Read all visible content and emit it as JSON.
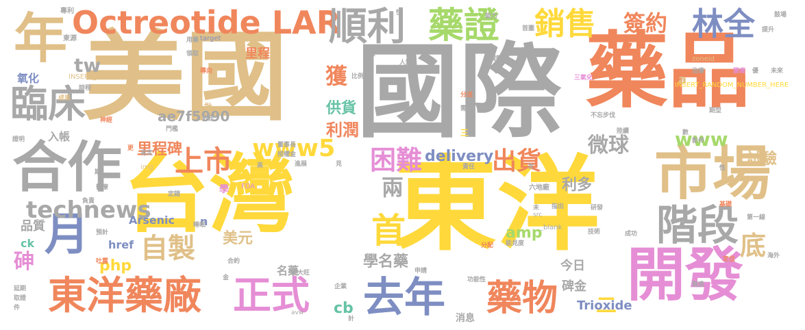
{
  "colors": {
    "background": "#ffffff",
    "palette": [
      "#a8a8a8",
      "#f0865c",
      "#e0c088",
      "#ffd93b",
      "#7e8ec2",
      "#e58ed5",
      "#a6d96a",
      "#66c2a5",
      "#d9b278"
    ]
  },
  "words": [
    {
      "text": "美國",
      "color": "#e0c088"
    },
    {
      "text": "國際",
      "color": "#a8a8a8"
    },
    {
      "text": "藥品",
      "color": "#f0865c"
    },
    {
      "text": "台灣",
      "color": "#ffd93b"
    },
    {
      "text": "東洋",
      "color": "#ffd93b"
    },
    {
      "text": "市場",
      "color": "#e0c088"
    },
    {
      "text": "開發",
      "color": "#e58ed5"
    },
    {
      "text": "合作",
      "color": "#a8a8a8"
    },
    {
      "text": "Octreotide LAR",
      "color": "#f0865c"
    },
    {
      "text": "順利",
      "color": "#a8a8a8"
    },
    {
      "text": "藥證",
      "color": "#a6d96a"
    },
    {
      "text": "銷售",
      "color": "#ffd93b"
    },
    {
      "text": "簽約",
      "color": "#f0865c"
    },
    {
      "text": "林全",
      "color": "#7e8ec2"
    },
    {
      "text": "年",
      "color": "#e0c088"
    },
    {
      "text": "臨床",
      "color": "#a8a8a8"
    },
    {
      "text": "月",
      "color": "#7e8ec2"
    },
    {
      "text": "階段",
      "color": "#a8a8a8"
    },
    {
      "text": "東洋藥廠",
      "color": "#f0865c"
    },
    {
      "text": "正式",
      "color": "#e58ed5"
    },
    {
      "text": "去年",
      "color": "#7e8ec2"
    },
    {
      "text": "藥物",
      "color": "#f0865c"
    },
    {
      "text": "上市",
      "color": "#f0865c"
    },
    {
      "text": "www5",
      "color": "#ffd93b"
    },
    {
      "text": "困難",
      "color": "#e58ed5"
    },
    {
      "text": "出貨",
      "color": "#f0865c"
    },
    {
      "text": "微球",
      "color": "#a8a8a8"
    },
    {
      "text": "www",
      "color": "#a6d96a"
    },
    {
      "text": "首",
      "color": "#ffd93b"
    },
    {
      "text": "自製",
      "color": "#e0c088"
    },
    {
      "text": "technews",
      "color": "#a8a8a8"
    },
    {
      "text": "底",
      "color": "#e0c088"
    },
    {
      "text": "獲",
      "color": "#f0865c"
    },
    {
      "text": "供貨",
      "color": "#66c2a5"
    },
    {
      "text": "利潤",
      "color": "#f0865c"
    },
    {
      "text": "兩",
      "color": "#a8a8a8"
    },
    {
      "text": "里程碑",
      "color": "#f0865c"
    },
    {
      "text": "ae7f5990",
      "color": "#a8a8a8"
    },
    {
      "text": "tw",
      "color": "#a8a8a8"
    },
    {
      "text": "delivery",
      "color": "#7e8ec2"
    },
    {
      "text": "試驗",
      "color": "#e0c088"
    },
    {
      "text": "利多",
      "color": "#a8a8a8"
    },
    {
      "text": "砷",
      "color": "#e58ed5"
    },
    {
      "text": "美元",
      "color": "#e0c088"
    },
    {
      "text": "學名藥",
      "color": "#a8a8a8"
    },
    {
      "text": "amp",
      "color": "#a6d96a"
    },
    {
      "text": "php",
      "color": "#ffd93b"
    },
    {
      "text": "cb",
      "color": "#66c2a5"
    },
    {
      "text": "名藥",
      "color": "#a8a8a8"
    },
    {
      "text": "Trioxide",
      "color": "#7e8ec2"
    },
    {
      "text": "碑金",
      "color": "#a8a8a8"
    },
    {
      "text": "今日",
      "color": "#a8a8a8"
    },
    {
      "text": "二",
      "color": "#ffd93b"
    },
    {
      "text": "Arsenic",
      "color": "#7e8ec2"
    },
    {
      "text": "品質",
      "color": "#a8a8a8"
    },
    {
      "text": "入帳",
      "color": "#a8a8a8"
    },
    {
      "text": "氧化",
      "color": "#7e8ec2"
    },
    {
      "text": "里程",
      "color": "#f0865c"
    },
    {
      "text": "href",
      "color": "#7e8ec2"
    },
    {
      "text": "ck",
      "color": "#66c2a5"
    },
    {
      "text": "n",
      "color": "#7e8ec2"
    },
    {
      "text": "a",
      "color": "#e0c088"
    },
    {
      "text": "消息",
      "color": "#a8a8a8"
    },
    {
      "text": "專利",
      "color": "#a8a8a8"
    },
    {
      "text": "東源",
      "color": "#a8a8a8"
    },
    {
      "text": "INSERT_RANDOM_N",
      "color": "#e0c088"
    },
    {
      "text": "INSERT_RANDOM_NUMBER_HERE",
      "color": "#ffd93b"
    },
    {
      "text": "target",
      "color": "#7e8ec2"
    },
    {
      "text": "zoneid",
      "color": "#e0c088"
    },
    {
      "text": "三",
      "color": "#ffd93b"
    },
    {
      "text": "三氧化",
      "color": "#e58ed5"
    },
    {
      "text": "六地廠",
      "color": "#a8a8a8"
    },
    {
      "text": "FDA",
      "color": "#e58ed5"
    },
    {
      "text": "學",
      "color": "#e58ed5"
    },
    {
      "text": "_blank",
      "color": "#a8a8a8"
    },
    {
      "text": "src",
      "color": "#a8a8a8"
    },
    {
      "text": "img",
      "color": "#e0c088"
    },
    {
      "text": "avw",
      "color": "#a8a8a8"
    },
    {
      "text": "能力",
      "color": "#a8a8a8"
    },
    {
      "text": "發展",
      "color": "#a8a8a8"
    },
    {
      "text": "比例",
      "color": "#a8a8a8"
    },
    {
      "text": "人類",
      "color": "#a8a8a8"
    },
    {
      "text": "導向",
      "color": "#f0865c"
    },
    {
      "text": "成果",
      "color": "#e0c088"
    },
    {
      "text": "時程",
      "color": "#a8a8a8"
    },
    {
      "text": "神經",
      "color": "#f0865c"
    },
    {
      "text": "約定",
      "color": "#a8a8a8"
    },
    {
      "text": "批",
      "color": "#e0c088"
    },
    {
      "text": "門檻",
      "color": "#a8a8a8"
    },
    {
      "text": "證明",
      "color": "#a8a8a8"
    },
    {
      "text": "分送",
      "color": "#f0865c"
    },
    {
      "text": "需求",
      "color": "#a8a8a8"
    },
    {
      "text": "董事長",
      "color": "#a8a8a8"
    },
    {
      "text": "授權金",
      "color": "#a8a8a8"
    },
    {
      "text": "進展",
      "color": "#a8a8a8"
    },
    {
      "text": "責任",
      "color": "#a8a8a8"
    },
    {
      "text": "醫療",
      "color": "#a8a8a8"
    },
    {
      "text": "負責",
      "color": "#a8a8a8"
    },
    {
      "text": "預計",
      "color": "#a8a8a8"
    },
    {
      "text": "分配",
      "color": "#f0865c"
    },
    {
      "text": "能見度",
      "color": "#a8a8a8"
    },
    {
      "text": "合約",
      "color": "#a8a8a8"
    },
    {
      "text": "把大旺",
      "color": "#a8a8a8"
    },
    {
      "text": "企業",
      "color": "#a8a8a8"
    },
    {
      "text": "功能性",
      "color": "#a8a8a8"
    },
    {
      "text": "研發",
      "color": "#a8a8a8"
    },
    {
      "text": "成功",
      "color": "#a8a8a8"
    },
    {
      "text": "技術",
      "color": "#a8a8a8"
    },
    {
      "text": "步伐",
      "color": "#a8a8a8"
    },
    {
      "text": "陸續",
      "color": "#a8a8a8"
    },
    {
      "text": "不忘",
      "color": "#a8a8a8"
    },
    {
      "text": "期型",
      "color": "#a8a8a8"
    },
    {
      "text": "基礎",
      "color": "#f0865c"
    },
    {
      "text": "第一線",
      "color": "#a8a8a8"
    },
    {
      "text": "製造",
      "color": "#a8a8a8"
    },
    {
      "text": "海外",
      "color": "#a8a8a8"
    },
    {
      "text": "定位",
      "color": "#f0865c"
    },
    {
      "text": "提升",
      "color": "#a8a8a8"
    },
    {
      "text": "鼓場",
      "color": "#a8a8a8"
    },
    {
      "text": "未來",
      "color": "#a8a8a8"
    },
    {
      "text": "治療",
      "color": "#a8a8a8"
    },
    {
      "text": "腺瘤",
      "color": "#e58ed5"
    },
    {
      "text": "優",
      "color": "#a8a8a8"
    },
    {
      "text": "首圖",
      "color": "#a8a8a8"
    },
    {
      "text": "關鍵",
      "color": "#a8a8a8"
    },
    {
      "text": "快",
      "color": "#a8a8a8"
    },
    {
      "text": "用藥",
      "color": "#a8a8a8"
    },
    {
      "text": "領取",
      "color": "#a8a8a8"
    },
    {
      "text": "高",
      "color": "#a8a8a8"
    },
    {
      "text": "吐露",
      "color": "#f0865c"
    },
    {
      "text": "期",
      "color": "#a8a8a8"
    },
    {
      "text": "延期",
      "color": "#a8a8a8"
    },
    {
      "text": "取證",
      "color": "#a8a8a8"
    },
    {
      "text": "件",
      "color": "#a8a8a8"
    },
    {
      "text": "肯定",
      "color": "#a8a8a8"
    },
    {
      "text": "定錯",
      "color": "#a8a8a8"
    },
    {
      "text": "睡眠",
      "color": "#a8a8a8"
    },
    {
      "text": "計",
      "color": "#a8a8a8"
    },
    {
      "text": "申請",
      "color": "#a8a8a8"
    },
    {
      "text": "金",
      "color": "#a8a8a8"
    },
    {
      "text": "見",
      "color": "#a8a8a8"
    },
    {
      "text": "次",
      "color": "#a8a8a8"
    },
    {
      "text": "未",
      "color": "#a8a8a8"
    },
    {
      "text": "指出",
      "color": "#a8a8a8"
    },
    {
      "text": "性",
      "color": "#a8a8a8"
    },
    {
      "text": "更",
      "color": "#f0865c"
    },
    {
      "text": "數",
      "color": "#a8a8a8"
    },
    {
      "text": "影伴",
      "color": "#a8a8a8"
    }
  ]
}
